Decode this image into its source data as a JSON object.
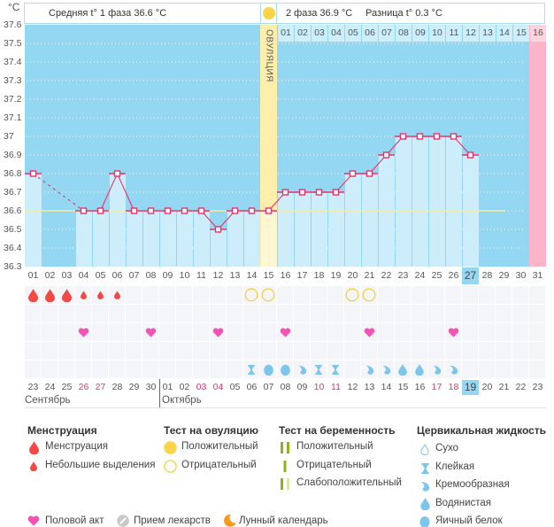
{
  "header": {
    "unit": "°C",
    "phase1_avg": "Средняя t° 1 фаза 36.6 °C",
    "phase2_avg": "2 фаза 36.9 °C",
    "difference": "Разница t° 0.3 °C",
    "ovulation_label": "ОВУЛЯЦИЯ"
  },
  "chart_data": {
    "type": "line",
    "title": "",
    "xlabel": "",
    "ylabel": "°C",
    "ylim": [
      36.3,
      37.6
    ],
    "grid": true,
    "y_ticks": [
      "37.6",
      "37.5",
      "37.4",
      "37.3",
      "37.2",
      "37.1",
      "37",
      "36.9",
      "36.8",
      "36.7",
      "36.6",
      "36.5",
      "36.4",
      "36.3"
    ],
    "x": [
      "01",
      "02",
      "03",
      "04",
      "05",
      "06",
      "07",
      "08",
      "09",
      "10",
      "11",
      "12",
      "13",
      "14",
      "15",
      "16",
      "17",
      "18",
      "19",
      "20",
      "21",
      "22",
      "23",
      "24",
      "25",
      "26",
      "27",
      "28",
      "29",
      "30",
      "31"
    ],
    "values": [
      36.8,
      null,
      null,
      36.6,
      36.6,
      36.8,
      36.6,
      36.6,
      36.6,
      36.6,
      36.6,
      36.5,
      36.6,
      36.6,
      36.6,
      36.7,
      36.7,
      36.7,
      36.7,
      36.8,
      36.8,
      36.9,
      37.0,
      37.0,
      37.0,
      37.0,
      36.9,
      null,
      null,
      null,
      null
    ],
    "coverline": 36.6,
    "ovulation_day": 15,
    "today_day": 27,
    "expected_period_day": 31,
    "phase2_day_labels": [
      "01",
      "02",
      "03",
      "04",
      "05",
      "06",
      "07",
      "08",
      "09",
      "10",
      "11",
      "12",
      "13",
      "14",
      "15",
      "16"
    ]
  },
  "tracking": {
    "menstruation": {
      "1": "heavy",
      "2": "heavy",
      "3": "heavy",
      "4": "light",
      "5": "light",
      "6": "light"
    },
    "ovulation_test": {
      "14": "negative",
      "15": "negative",
      "20": "negative",
      "21": "negative"
    },
    "pregnancy_test": {},
    "intercourse": [
      4,
      8,
      12,
      16,
      21,
      26
    ],
    "medication": [],
    "cervical_fluid": {
      "14": "sticky",
      "15": "egg-white",
      "16": "egg-white",
      "17": "creamy",
      "18": "sticky",
      "19": "sticky",
      "21": "creamy",
      "22": "creamy",
      "23": "watery",
      "24": "watery",
      "25": "creamy",
      "26": "creamy"
    }
  },
  "calendar": {
    "dates": [
      {
        "d": "23",
        "weekend": false
      },
      {
        "d": "24",
        "weekend": false
      },
      {
        "d": "25",
        "weekend": false
      },
      {
        "d": "26",
        "weekend": true
      },
      {
        "d": "27",
        "weekend": true
      },
      {
        "d": "28",
        "weekend": false
      },
      {
        "d": "29",
        "weekend": false
      },
      {
        "d": "30",
        "weekend": false
      },
      {
        "d": "01",
        "weekend": false
      },
      {
        "d": "02",
        "weekend": false
      },
      {
        "d": "03",
        "weekend": true
      },
      {
        "d": "04",
        "weekend": true
      },
      {
        "d": "05",
        "weekend": false
      },
      {
        "d": "06",
        "weekend": false
      },
      {
        "d": "07",
        "weekend": false
      },
      {
        "d": "08",
        "weekend": false
      },
      {
        "d": "09",
        "weekend": false
      },
      {
        "d": "10",
        "weekend": true
      },
      {
        "d": "11",
        "weekend": true
      },
      {
        "d": "12",
        "weekend": false
      },
      {
        "d": "13",
        "weekend": false
      },
      {
        "d": "14",
        "weekend": false
      },
      {
        "d": "15",
        "weekend": false
      },
      {
        "d": "16",
        "weekend": false
      },
      {
        "d": "17",
        "weekend": true
      },
      {
        "d": "18",
        "weekend": true
      },
      {
        "d": "19",
        "weekend": false
      },
      {
        "d": "20",
        "weekend": false
      },
      {
        "d": "21",
        "weekend": false
      },
      {
        "d": "22",
        "weekend": false
      },
      {
        "d": "23",
        "weekend": false
      }
    ],
    "months": [
      {
        "name": "Сентябрь",
        "start_day": 1
      },
      {
        "name": "Октябрь",
        "start_day": 9
      }
    ]
  },
  "legend": {
    "menstruation": {
      "title": "Менструация",
      "items": [
        "Менструация",
        "Небольшие выделения"
      ]
    },
    "ovulation_test": {
      "title": "Тест на овуляцию",
      "items": [
        "Положительный",
        "Отрицательный"
      ]
    },
    "pregnancy_test": {
      "title": "Тест на беременность",
      "items": [
        "Положительный",
        "Отрицательный",
        "Слабоположительный"
      ]
    },
    "cervical_fluid": {
      "title": "Цервикальная жидкость",
      "items": [
        "Сухо",
        "Клейкая",
        "Кремообразная",
        "Водянистая",
        "Яичный белок"
      ]
    },
    "other": [
      "Половой акт",
      "Прием лекарств",
      "Лунный календарь"
    ]
  },
  "colors": {
    "chart_bg": "#93d7f2",
    "bar": "#cdedfb",
    "temperature_line": "#e8336a",
    "ovulation_column": "#fdeeab",
    "ovulation_bar": "#fff6d4",
    "expected_period": "#fbb4c8",
    "coverline": "#f7ec98",
    "weekend": "#e8336a",
    "today": "#93d7f2",
    "menstruation": "#f24848",
    "ovulation_test": "#f5cf48",
    "heart": "#f553b4",
    "cervical": "#7cc6ee",
    "pregnancy": "#8ab51f"
  }
}
